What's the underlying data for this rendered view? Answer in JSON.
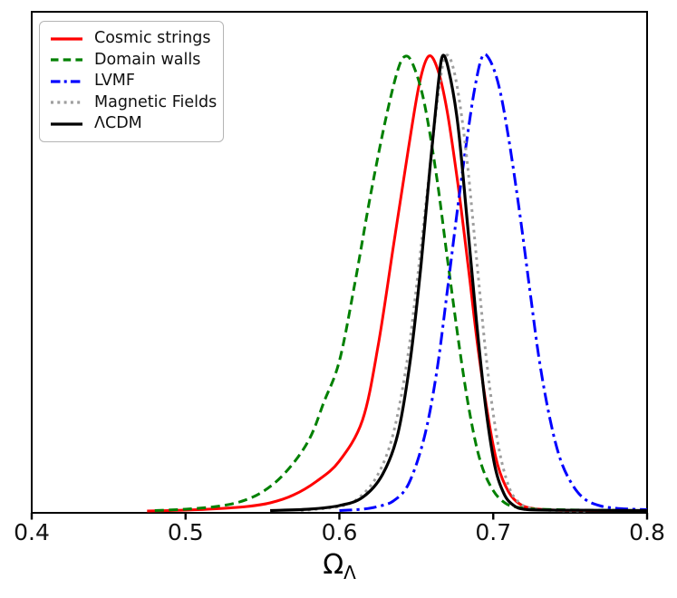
{
  "figure": {
    "background": "#ffffff",
    "axis_color": "#000000"
  },
  "chart_data": {
    "type": "line",
    "title": "",
    "xlabel_base": "Ω",
    "xlabel_subscript": "Λ",
    "ylabel": "",
    "xlim": [
      0.4,
      0.8
    ],
    "ylim": [
      0,
      1.1
    ],
    "x_ticks": [
      0.4,
      0.5,
      0.6,
      0.7,
      0.8
    ],
    "x_tick_labels": [
      "0.4",
      "0.5",
      "0.6",
      "0.7",
      "0.8"
    ],
    "y_ticks": [],
    "grid": false,
    "legend_position": "upper left",
    "series": [
      {
        "name": "Cosmic strings",
        "color": "#ff0000",
        "linestyle": "solid",
        "peak_x": 0.658,
        "peak_y": 1.0,
        "points": [
          [
            0.475,
            0
          ],
          [
            0.5,
            0.002
          ],
          [
            0.52,
            0.005
          ],
          [
            0.54,
            0.01
          ],
          [
            0.555,
            0.018
          ],
          [
            0.57,
            0.035
          ],
          [
            0.585,
            0.065
          ],
          [
            0.6,
            0.11
          ],
          [
            0.615,
            0.2
          ],
          [
            0.625,
            0.36
          ],
          [
            0.635,
            0.58
          ],
          [
            0.645,
            0.8
          ],
          [
            0.652,
            0.94
          ],
          [
            0.658,
            1.0
          ],
          [
            0.664,
            0.97
          ],
          [
            0.67,
            0.88
          ],
          [
            0.677,
            0.72
          ],
          [
            0.684,
            0.53
          ],
          [
            0.69,
            0.36
          ],
          [
            0.697,
            0.2
          ],
          [
            0.703,
            0.1
          ],
          [
            0.71,
            0.042
          ],
          [
            0.717,
            0.016
          ],
          [
            0.725,
            0.006
          ],
          [
            0.74,
            0.002
          ],
          [
            0.76,
            0.001
          ],
          [
            0.8,
            0.001
          ]
        ]
      },
      {
        "name": "Domain walls",
        "color": "#008000",
        "linestyle": "dashed",
        "peak_x": 0.643,
        "peak_y": 1.0,
        "points": [
          [
            0.48,
            0.001
          ],
          [
            0.5,
            0.004
          ],
          [
            0.52,
            0.01
          ],
          [
            0.535,
            0.02
          ],
          [
            0.55,
            0.042
          ],
          [
            0.565,
            0.085
          ],
          [
            0.58,
            0.155
          ],
          [
            0.59,
            0.24
          ],
          [
            0.6,
            0.33
          ],
          [
            0.61,
            0.5
          ],
          [
            0.62,
            0.69
          ],
          [
            0.63,
            0.86
          ],
          [
            0.638,
            0.97
          ],
          [
            0.643,
            1.0
          ],
          [
            0.648,
            0.98
          ],
          [
            0.655,
            0.9
          ],
          [
            0.663,
            0.74
          ],
          [
            0.67,
            0.56
          ],
          [
            0.678,
            0.36
          ],
          [
            0.685,
            0.21
          ],
          [
            0.692,
            0.105
          ],
          [
            0.7,
            0.045
          ],
          [
            0.708,
            0.017
          ],
          [
            0.716,
            0.008
          ],
          [
            0.73,
            0.004
          ],
          [
            0.76,
            0.002
          ],
          [
            0.8,
            0.001
          ]
        ]
      },
      {
        "name": "LVMF",
        "color": "#0000ff",
        "linestyle": "dashdot",
        "peak_x": 0.693,
        "peak_y": 1.0,
        "points": [
          [
            0.6,
            0.001
          ],
          [
            0.615,
            0.004
          ],
          [
            0.625,
            0.01
          ],
          [
            0.635,
            0.022
          ],
          [
            0.645,
            0.06
          ],
          [
            0.655,
            0.16
          ],
          [
            0.663,
            0.3
          ],
          [
            0.67,
            0.48
          ],
          [
            0.677,
            0.67
          ],
          [
            0.683,
            0.82
          ],
          [
            0.688,
            0.93
          ],
          [
            0.693,
            1.0
          ],
          [
            0.698,
            0.99
          ],
          [
            0.704,
            0.93
          ],
          [
            0.71,
            0.82
          ],
          [
            0.717,
            0.66
          ],
          [
            0.724,
            0.48
          ],
          [
            0.73,
            0.33
          ],
          [
            0.737,
            0.2
          ],
          [
            0.744,
            0.11
          ],
          [
            0.752,
            0.055
          ],
          [
            0.76,
            0.025
          ],
          [
            0.77,
            0.011
          ],
          [
            0.78,
            0.006
          ],
          [
            0.79,
            0.004
          ],
          [
            0.8,
            0.003
          ]
        ]
      },
      {
        "name": "Magnetic Fields",
        "color": "#9e9e9e",
        "linestyle": "dotted",
        "peak_x": 0.669,
        "peak_y": 1.0,
        "points": [
          [
            0.575,
            0.001
          ],
          [
            0.6,
            0.01
          ],
          [
            0.613,
            0.03
          ],
          [
            0.625,
            0.08
          ],
          [
            0.635,
            0.17
          ],
          [
            0.644,
            0.33
          ],
          [
            0.651,
            0.52
          ],
          [
            0.658,
            0.73
          ],
          [
            0.664,
            0.91
          ],
          [
            0.669,
            1.0
          ],
          [
            0.675,
            0.96
          ],
          [
            0.682,
            0.8
          ],
          [
            0.689,
            0.56
          ],
          [
            0.696,
            0.32
          ],
          [
            0.703,
            0.15
          ],
          [
            0.71,
            0.055
          ],
          [
            0.717,
            0.018
          ],
          [
            0.726,
            0.005
          ],
          [
            0.74,
            0.001
          ],
          [
            0.76,
            0.0
          ]
        ]
      },
      {
        "name": "ΛCDM",
        "color": "#000000",
        "linestyle": "solid",
        "peak_x": 0.667,
        "peak_y": 1.0,
        "points": [
          [
            0.555,
            0.001
          ],
          [
            0.58,
            0.004
          ],
          [
            0.6,
            0.012
          ],
          [
            0.615,
            0.03
          ],
          [
            0.628,
            0.08
          ],
          [
            0.638,
            0.17
          ],
          [
            0.646,
            0.33
          ],
          [
            0.653,
            0.54
          ],
          [
            0.659,
            0.76
          ],
          [
            0.664,
            0.93
          ],
          [
            0.667,
            1.0
          ],
          [
            0.671,
            0.97
          ],
          [
            0.677,
            0.85
          ],
          [
            0.683,
            0.64
          ],
          [
            0.689,
            0.42
          ],
          [
            0.695,
            0.23
          ],
          [
            0.701,
            0.1
          ],
          [
            0.707,
            0.038
          ],
          [
            0.713,
            0.013
          ],
          [
            0.72,
            0.004
          ],
          [
            0.735,
            0.002
          ],
          [
            0.8,
            0.001
          ]
        ]
      }
    ]
  }
}
